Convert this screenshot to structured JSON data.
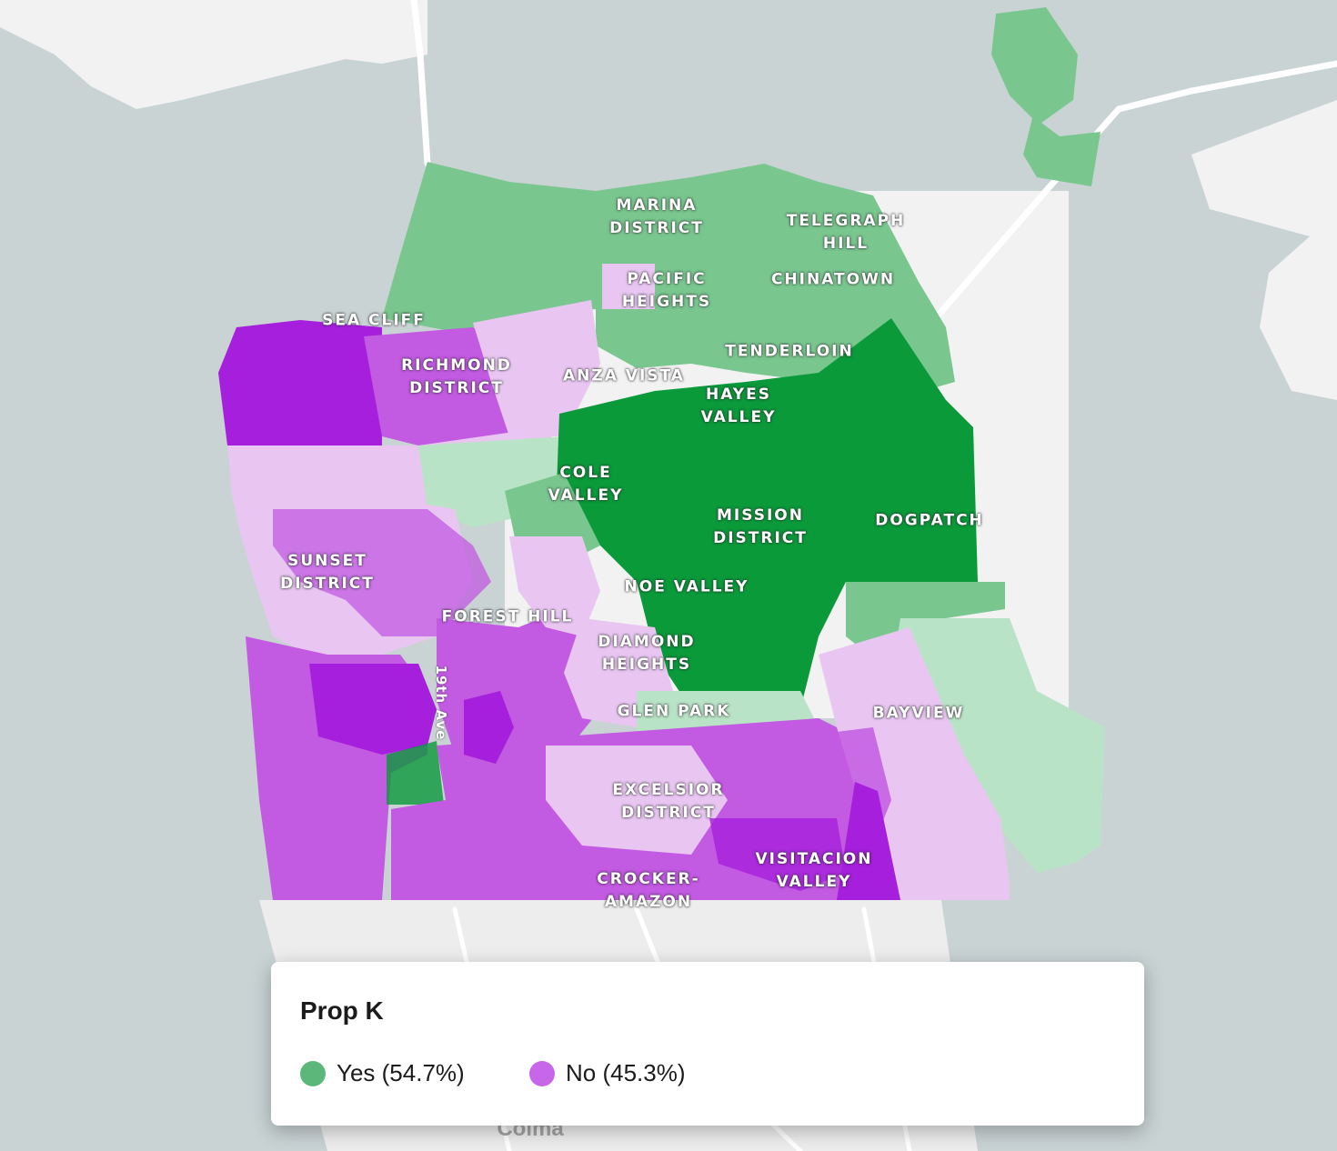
{
  "legend": {
    "title": "Prop K",
    "items": [
      {
        "key": "yes",
        "label": "Yes (54.7%)",
        "color": "#5cb87a"
      },
      {
        "key": "no",
        "label": "No (45.3%)",
        "color": "#c766e8"
      }
    ]
  },
  "palette": {
    "water": "#c9d3d4",
    "land": "#f2f2f2",
    "road": "#ffffff",
    "yes_light": "#b9e3c6",
    "yes_mid": "#79c68f",
    "yes_dark": "#0a9a3a",
    "no_light": "#e8c6f1",
    "no_mid": "#c25ae2",
    "no_dark": "#a51fdc"
  },
  "neighborhoods": [
    {
      "id": "marina-district",
      "name": "MARINA\nDISTRICT"
    },
    {
      "id": "telegraph-hill",
      "name": "TELEGRAPH\nHILL"
    },
    {
      "id": "pacific-heights",
      "name": "PACIFIC\nHEIGHTS"
    },
    {
      "id": "chinatown",
      "name": "CHINATOWN"
    },
    {
      "id": "sea-cliff",
      "name": "SEA CLIFF"
    },
    {
      "id": "tenderloin",
      "name": "TENDERLOIN"
    },
    {
      "id": "richmond-district",
      "name": "RICHMOND\nDISTRICT"
    },
    {
      "id": "anza-vista",
      "name": "ANZA VISTA"
    },
    {
      "id": "hayes-valley",
      "name": "HAYES\nVALLEY"
    },
    {
      "id": "cole-valley",
      "name": "COLE\nVALLEY"
    },
    {
      "id": "mission-district",
      "name": "MISSION\nDISTRICT"
    },
    {
      "id": "dogpatch",
      "name": "DOGPATCH"
    },
    {
      "id": "sunset-district",
      "name": "SUNSET\nDISTRICT"
    },
    {
      "id": "noe-valley",
      "name": "NOE VALLEY"
    },
    {
      "id": "forest-hill",
      "name": "FOREST HILL"
    },
    {
      "id": "diamond-heights",
      "name": "DIAMOND\nHEIGHTS"
    },
    {
      "id": "glen-park",
      "name": "GLEN PARK"
    },
    {
      "id": "bayview",
      "name": "BAYVIEW"
    },
    {
      "id": "excelsior-district",
      "name": "EXCELSIOR\nDISTRICT"
    },
    {
      "id": "visitacion-valley",
      "name": "VISITACION\nVALLEY"
    },
    {
      "id": "crocker-amazon",
      "name": "CROCKER-\nAMAZON"
    }
  ],
  "street": {
    "name": "19th Ave"
  },
  "city": {
    "name": "Colma"
  }
}
